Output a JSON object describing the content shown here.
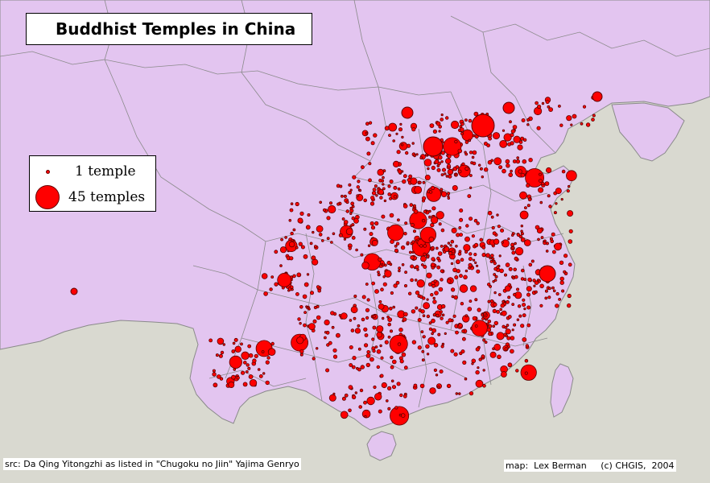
{
  "map_title": "Buddhist Temples in China",
  "legend": {
    "small_label": "1 temple",
    "large_label": "45 temples",
    "min_count": 1,
    "max_count": 45
  },
  "source_credit": "src: Da Qing Yitongzhi as listed in \"Chugoku no Jiin\" Yajima Genryo",
  "map_credit": "map:  Lex Berman     (c) CHGIS,  2004",
  "colors": {
    "land_china": "#e3c5f0",
    "land_outside": "#d9d9d0",
    "sea": "#d9d9d0",
    "border": "#8a8a8a",
    "temple_fill": "#ff0000",
    "temple_outline": "#5a0000"
  }
}
